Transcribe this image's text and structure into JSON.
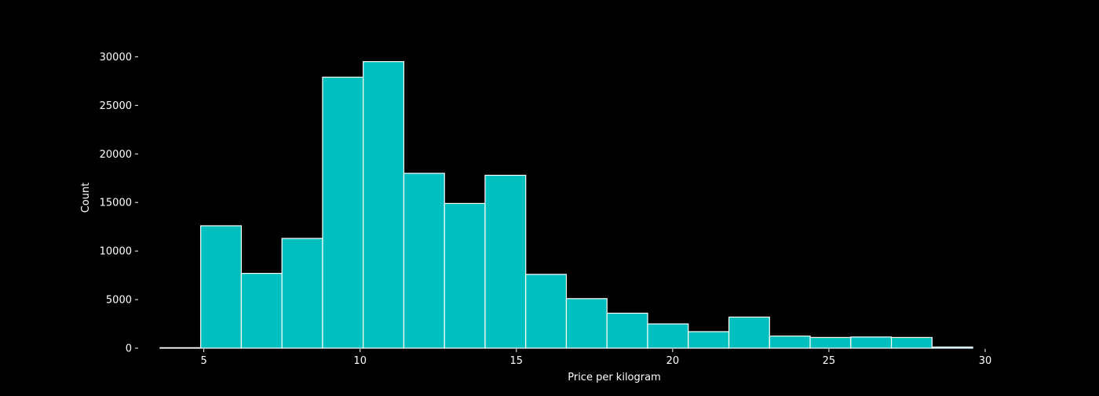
{
  "chart_data": {
    "type": "bar",
    "subtype": "histogram",
    "xlabel": "Price per kilogram",
    "ylabel": "Count",
    "xlim": [
      3,
      30
    ],
    "ylim": [
      0,
      31000
    ],
    "xticks": [
      5,
      10,
      15,
      20,
      25,
      30
    ],
    "yticks": [
      0,
      5000,
      10000,
      15000,
      20000,
      25000,
      30000
    ],
    "grid": false,
    "legend": "none",
    "colors": {
      "bar": "#00BFBF",
      "edge": "#ffffff",
      "background": "#000000",
      "text": "#ffffff"
    },
    "bins": [
      {
        "x0": 3.6,
        "x1": 4.9,
        "count": 50
      },
      {
        "x0": 4.9,
        "x1": 6.2,
        "count": 12600
      },
      {
        "x0": 6.2,
        "x1": 7.5,
        "count": 7700
      },
      {
        "x0": 7.5,
        "x1": 8.8,
        "count": 11300
      },
      {
        "x0": 8.8,
        "x1": 10.1,
        "count": 27900
      },
      {
        "x0": 10.1,
        "x1": 11.4,
        "count": 29500
      },
      {
        "x0": 11.4,
        "x1": 12.7,
        "count": 18000
      },
      {
        "x0": 12.7,
        "x1": 14.0,
        "count": 14900
      },
      {
        "x0": 14.0,
        "x1": 15.3,
        "count": 17800
      },
      {
        "x0": 15.3,
        "x1": 16.6,
        "count": 7600
      },
      {
        "x0": 16.6,
        "x1": 17.9,
        "count": 5100
      },
      {
        "x0": 17.9,
        "x1": 19.2,
        "count": 3600
      },
      {
        "x0": 19.2,
        "x1": 20.5,
        "count": 2500
      },
      {
        "x0": 20.5,
        "x1": 21.8,
        "count": 1700
      },
      {
        "x0": 21.8,
        "x1": 23.1,
        "count": 3200
      },
      {
        "x0": 23.1,
        "x1": 24.4,
        "count": 1250
      },
      {
        "x0": 24.4,
        "x1": 25.7,
        "count": 1100
      },
      {
        "x0": 25.7,
        "x1": 27.0,
        "count": 1150
      },
      {
        "x0": 27.0,
        "x1": 28.3,
        "count": 1100
      },
      {
        "x0": 28.3,
        "x1": 29.6,
        "count": 120
      }
    ]
  }
}
